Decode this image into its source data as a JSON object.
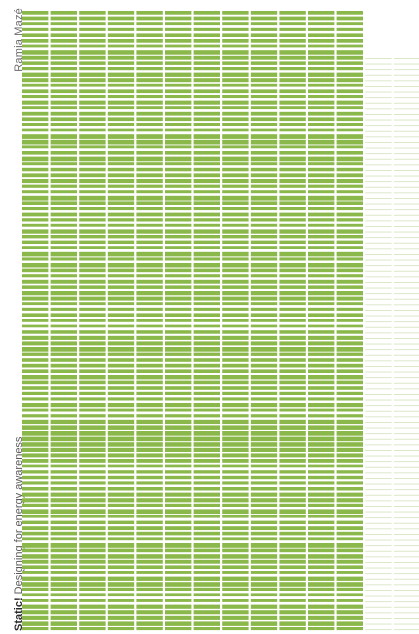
{
  "cover": {
    "author": "Ramia Mazé",
    "title_bold": "Static!",
    "title_rest": " Designing for energy awareness"
  },
  "colors": {
    "background": "#ffffff",
    "bar_fill": "#8ab84a",
    "bar_faint": "#d7e5c3",
    "text": "#5a5a5a"
  }
}
